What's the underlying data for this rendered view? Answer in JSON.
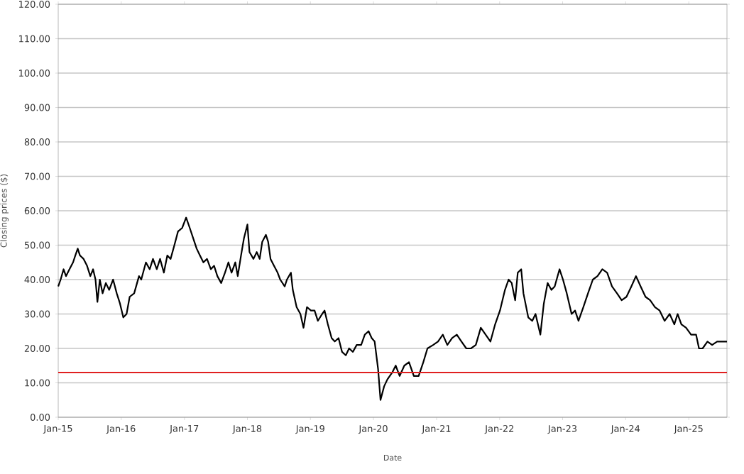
{
  "chart_data": {
    "type": "line",
    "xlabel": "Date",
    "ylabel": "Closing prices ($)",
    "xlim": [
      "2015-01-01",
      "2025-08-10"
    ],
    "xticks": [
      {
        "value": "2015-01-01",
        "label": "Jan-15"
      },
      {
        "value": "2016-01-01",
        "label": "Jan-16"
      },
      {
        "value": "2017-01-01",
        "label": "Jan-17"
      },
      {
        "value": "2018-01-01",
        "label": "Jan-18"
      },
      {
        "value": "2019-01-01",
        "label": "Jan-19"
      },
      {
        "value": "2020-01-01",
        "label": "Jan-20"
      },
      {
        "value": "2021-01-01",
        "label": "Jan-21"
      },
      {
        "value": "2022-01-01",
        "label": "Jan-22"
      },
      {
        "value": "2023-01-01",
        "label": "Jan-23"
      },
      {
        "value": "2024-01-01",
        "label": "Jan-24"
      },
      {
        "value": "2025-01-01",
        "label": "Jan-25"
      }
    ],
    "ylim": [
      0,
      120
    ],
    "yticks": [
      {
        "value": 0,
        "label": "0.00"
      },
      {
        "value": 10,
        "label": "10.00"
      },
      {
        "value": 20,
        "label": "20.00"
      },
      {
        "value": 30,
        "label": "30.00"
      },
      {
        "value": 40,
        "label": "40.00"
      },
      {
        "value": 50,
        "label": "50.00"
      },
      {
        "value": 60,
        "label": "60.00"
      },
      {
        "value": 70,
        "label": "70.00"
      },
      {
        "value": 80,
        "label": "80.00"
      },
      {
        "value": 90,
        "label": "90.00"
      },
      {
        "value": 100,
        "label": "100.00"
      },
      {
        "value": 110,
        "label": "110.00"
      },
      {
        "value": 120,
        "label": "120.00"
      }
    ],
    "grid": "y",
    "marker": "none",
    "line_style": "solid",
    "ref_lines": [
      {
        "axis": "y",
        "value": 13,
        "color": "#e02020"
      }
    ],
    "x": [
      "2015-01-01",
      "2015-01-15",
      "2015-02-01",
      "2015-02-15",
      "2015-03-07",
      "2015-03-28",
      "2015-04-10",
      "2015-04-24",
      "2015-05-07",
      "2015-05-28",
      "2015-06-17",
      "2015-07-06",
      "2015-07-22",
      "2015-08-05",
      "2015-08-16",
      "2015-08-30",
      "2015-09-15",
      "2015-10-04",
      "2015-10-23",
      "2015-11-15",
      "2015-12-06",
      "2015-12-25",
      "2016-01-13",
      "2016-02-01",
      "2016-02-19",
      "2016-03-16",
      "2016-04-13",
      "2016-04-26",
      "2016-05-23",
      "2016-06-14",
      "2016-07-03",
      "2016-07-25",
      "2016-08-13",
      "2016-09-04",
      "2016-09-24",
      "2016-10-13",
      "2016-11-04",
      "2016-11-25",
      "2016-12-19",
      "2017-01-11",
      "2017-02-01",
      "2017-02-21",
      "2017-03-13",
      "2017-04-01",
      "2017-04-21",
      "2017-05-12",
      "2017-06-03",
      "2017-06-22",
      "2017-07-11",
      "2017-08-02",
      "2017-08-24",
      "2017-09-13",
      "2017-10-01",
      "2017-10-23",
      "2017-11-06",
      "2017-11-25",
      "2017-12-12",
      "2018-01-01",
      "2018-01-13",
      "2018-02-05",
      "2018-02-24",
      "2018-03-13",
      "2018-03-28",
      "2018-04-18",
      "2018-05-01",
      "2018-05-15",
      "2018-06-04",
      "2018-06-25",
      "2018-07-10",
      "2018-08-05",
      "2018-08-18",
      "2018-09-10",
      "2018-09-21",
      "2018-10-13",
      "2018-11-04",
      "2018-11-22",
      "2018-12-12",
      "2019-01-04",
      "2019-01-25",
      "2019-02-13",
      "2019-03-10",
      "2019-03-24",
      "2019-04-12",
      "2019-05-04",
      "2019-05-22",
      "2019-06-13",
      "2019-07-03",
      "2019-07-25",
      "2019-08-13",
      "2019-09-04",
      "2019-09-26",
      "2019-10-22",
      "2019-11-12",
      "2019-12-04",
      "2019-12-22",
      "2020-01-08",
      "2020-01-28",
      "2020-02-11",
      "2020-03-03",
      "2020-03-22",
      "2020-04-19",
      "2020-05-09",
      "2020-06-01",
      "2020-06-28",
      "2020-07-25",
      "2020-08-22",
      "2020-09-19",
      "2020-10-16",
      "2020-11-09",
      "2020-12-12",
      "2021-01-09",
      "2021-02-06",
      "2021-03-04",
      "2021-04-01",
      "2021-04-28",
      "2021-05-25",
      "2021-06-22",
      "2021-07-19",
      "2021-08-16",
      "2021-09-14",
      "2021-10-12",
      "2021-11-09",
      "2021-12-06",
      "2022-01-03",
      "2022-02-01",
      "2022-02-22",
      "2022-03-12",
      "2022-04-01",
      "2022-04-16",
      "2022-05-06",
      "2022-05-19",
      "2022-06-16",
      "2022-07-09",
      "2022-07-28",
      "2022-08-25",
      "2022-09-14",
      "2022-10-06",
      "2022-10-28",
      "2022-11-16",
      "2022-12-14",
      "2023-01-03",
      "2023-01-25",
      "2023-02-22",
      "2023-03-14",
      "2023-04-03",
      "2023-05-01",
      "2023-05-28",
      "2023-06-25",
      "2023-07-22",
      "2023-08-19",
      "2023-09-16",
      "2023-10-14",
      "2023-11-12",
      "2023-12-09",
      "2024-01-06",
      "2024-02-03",
      "2024-03-01",
      "2024-03-28",
      "2024-04-25",
      "2024-05-22",
      "2024-06-19",
      "2024-07-16",
      "2024-08-14",
      "2024-09-12",
      "2024-10-09",
      "2024-10-28",
      "2024-11-19",
      "2024-12-16",
      "2025-01-14",
      "2025-02-12",
      "2025-03-01",
      "2025-03-22",
      "2025-04-19",
      "2025-05-16",
      "2025-06-14",
      "2025-07-13",
      "2025-08-10"
    ],
    "series": [
      {
        "color": "#000000",
        "values": [
          38,
          40,
          43,
          41,
          43,
          45,
          47,
          49,
          47,
          46,
          44,
          41,
          43,
          40,
          33.5,
          40,
          36,
          39,
          37,
          40,
          36,
          33,
          29,
          30,
          35,
          36,
          41,
          40,
          45,
          43,
          46,
          43,
          46,
          42,
          47,
          46,
          50,
          54,
          55,
          58,
          55,
          52,
          49,
          47,
          45,
          46,
          43,
          44,
          41,
          39,
          42,
          45,
          42,
          45,
          41,
          47,
          52,
          56,
          48,
          46,
          48,
          46,
          51,
          53,
          51,
          46,
          44,
          42,
          40,
          38,
          40,
          42,
          37,
          32,
          30,
          26,
          32,
          31,
          31,
          28,
          30,
          31,
          27,
          23,
          22,
          23,
          19,
          18,
          20,
          19,
          21,
          21,
          24,
          25,
          23,
          22,
          14,
          5,
          9,
          11,
          13,
          15,
          12,
          15,
          16,
          12,
          12,
          16,
          20,
          21,
          22,
          24,
          21,
          23,
          24,
          22,
          20,
          20,
          21,
          26,
          24,
          22,
          27,
          31,
          37,
          40,
          39,
          34,
          42,
          43,
          36,
          29,
          28,
          30,
          24,
          33,
          39,
          37,
          38,
          43,
          40,
          36,
          30,
          31,
          28,
          32,
          36,
          40,
          41,
          43,
          42,
          38,
          36,
          34,
          35,
          38,
          41,
          38,
          35,
          34,
          32,
          31,
          28,
          30,
          27,
          30,
          27,
          26,
          24,
          24,
          20,
          20,
          22,
          21,
          22,
          22,
          22
        ]
      }
    ]
  }
}
